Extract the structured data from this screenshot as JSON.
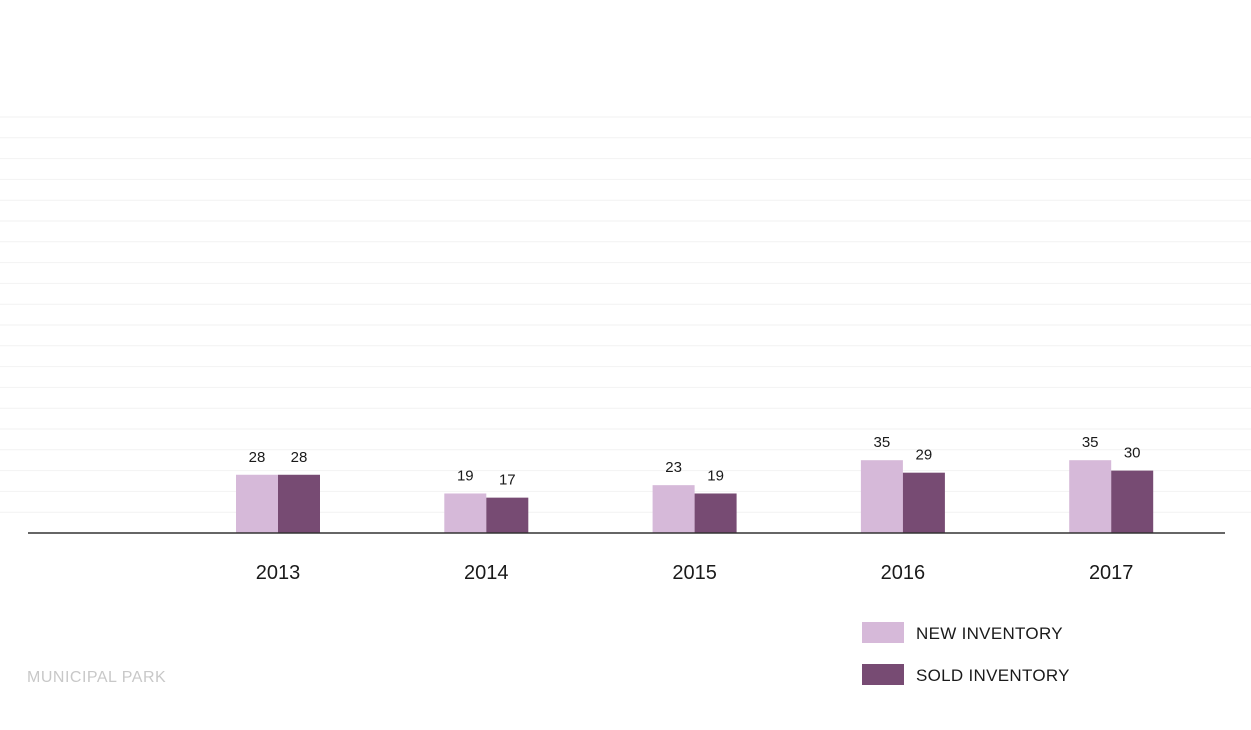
{
  "chart_data": {
    "type": "bar",
    "categories": [
      "2013",
      "2014",
      "2015",
      "2016",
      "2017"
    ],
    "series": [
      {
        "name": "NEW INVENTORY",
        "values": [
          28,
          19,
          23,
          35,
          35
        ],
        "color": "#d6b9d9"
      },
      {
        "name": "SOLD INVENTORY",
        "values": [
          28,
          17,
          19,
          29,
          30
        ],
        "color": "#774b73"
      }
    ],
    "title": "",
    "xlabel": "",
    "ylabel": "",
    "ylim": [
      0,
      200
    ],
    "grid": true,
    "legend_position": "bottom-right"
  },
  "legend": {
    "new_label": "NEW INVENTORY",
    "sold_label": "SOLD INVENTORY"
  },
  "footer": {
    "label": "MUNICIPAL PARK"
  },
  "colors": {
    "new": "#d6b9d9",
    "sold": "#774b73",
    "axis": "#333333",
    "grid": "#f2f2f2"
  }
}
